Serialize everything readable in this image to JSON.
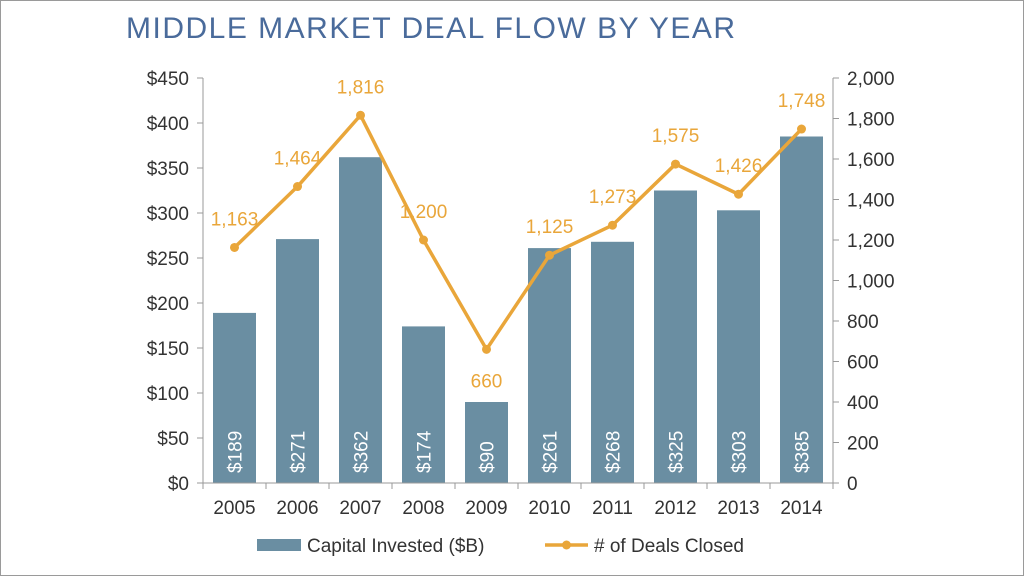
{
  "chart_data": {
    "type": "bar",
    "title": "MIDDLE MARKET DEAL FLOW BY YEAR",
    "categories": [
      "2005",
      "2006",
      "2007",
      "2008",
      "2009",
      "2010",
      "2011",
      "2012",
      "2013",
      "2014"
    ],
    "series": [
      {
        "name": "Capital Invested ($B)",
        "type": "bar",
        "axis": "left",
        "values": [
          189,
          271,
          362,
          174,
          90,
          261,
          268,
          325,
          303,
          385
        ],
        "labels": [
          "$189",
          "$271",
          "$362",
          "$174",
          "$90",
          "$261",
          "$268",
          "$325",
          "$303",
          "$385"
        ],
        "color": "#6a8ea2"
      },
      {
        "name": "# of Deals Closed",
        "type": "line",
        "axis": "right",
        "values": [
          1163,
          1464,
          1816,
          1200,
          660,
          1125,
          1273,
          1575,
          1426,
          1748
        ],
        "labels": [
          "1,163",
          "1,464",
          "1,816",
          "1,200",
          "660",
          "1,125",
          "1,273",
          "1,575",
          "1,426",
          "1,748"
        ],
        "color": "#e9a63a"
      }
    ],
    "y_left": {
      "range": [
        0,
        450
      ],
      "ticks": [
        0,
        50,
        100,
        150,
        200,
        250,
        300,
        350,
        400,
        450
      ],
      "tick_labels": [
        "$0",
        "$50",
        "$100",
        "$150",
        "$200",
        "$250",
        "$300",
        "$350",
        "$400",
        "$450"
      ]
    },
    "y_right": {
      "range": [
        0,
        2000
      ],
      "ticks": [
        0,
        200,
        400,
        600,
        800,
        1000,
        1200,
        1400,
        1600,
        1800,
        2000
      ],
      "tick_labels": [
        "0",
        "200",
        "400",
        "600",
        "800",
        "1,000",
        "1,200",
        "1,400",
        "1,600",
        "1,800",
        "2,000"
      ]
    },
    "grid": false,
    "legend_position": "bottom",
    "axis_color": "#999999"
  }
}
